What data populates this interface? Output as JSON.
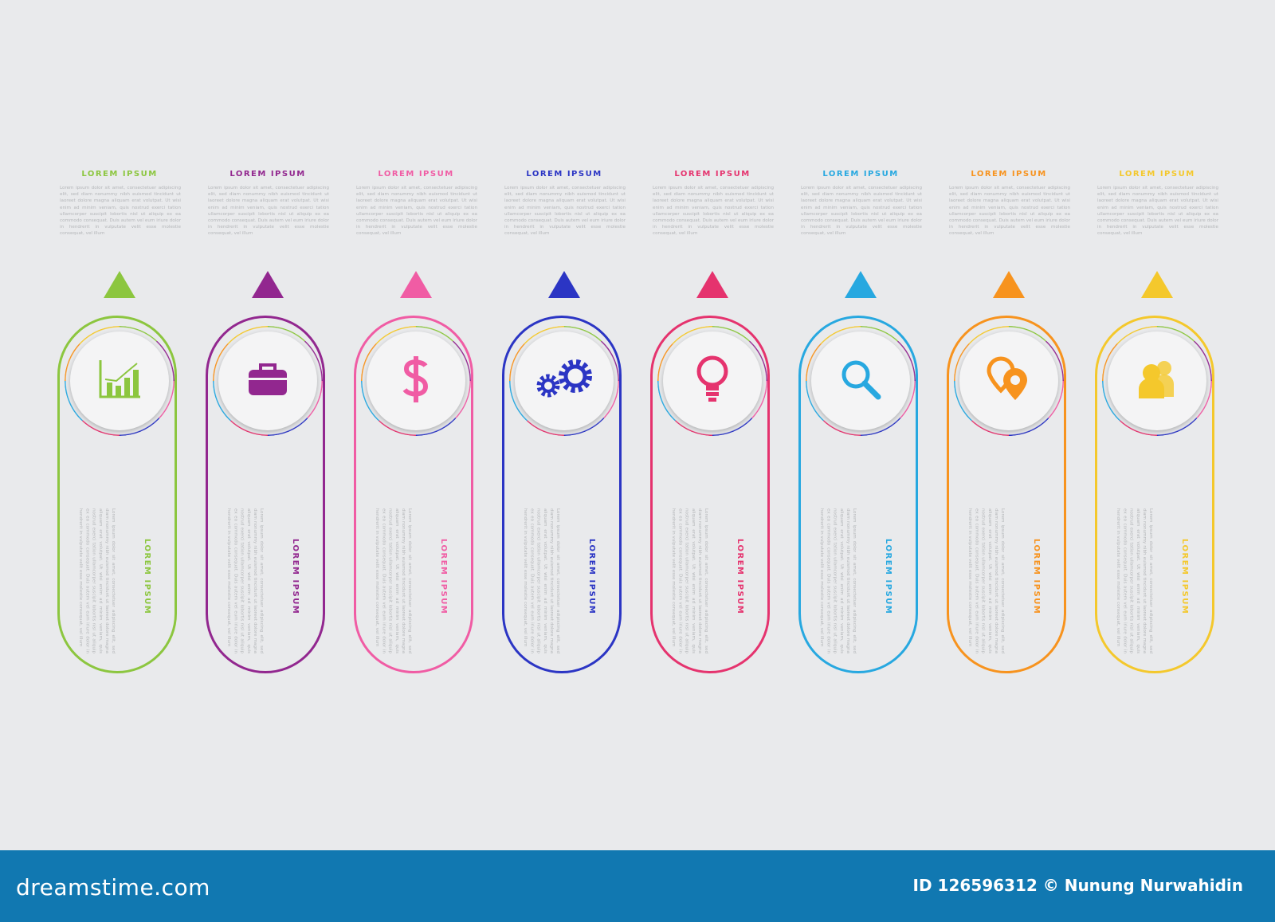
{
  "columns": [
    {
      "heading": "LOREM IPSUM",
      "color": "#8cc63f",
      "icon": "bar-chart-icon"
    },
    {
      "heading": "LOREM IPSUM",
      "color": "#92278f",
      "icon": "briefcase-icon"
    },
    {
      "heading": "LOREM IPSUM",
      "color": "#f05ca4",
      "icon": "dollar-icon"
    },
    {
      "heading": "LOREM IPSUM",
      "color": "#2b35c4",
      "icon": "gears-icon"
    },
    {
      "heading": "LOREM IPSUM",
      "color": "#e5336e",
      "icon": "lightbulb-icon"
    },
    {
      "heading": "LOREM IPSUM",
      "color": "#27a8e0",
      "icon": "search-icon"
    },
    {
      "heading": "LOREM IPSUM",
      "color": "#f7931e",
      "icon": "location-pins-icon"
    },
    {
      "heading": "LOREM IPSUM",
      "color": "#f4c82c",
      "icon": "users-icon"
    }
  ],
  "body_text": "Lorem ipsum dolor sit amet, consectetuer adipiscing elit, sed diam nonummy nibh euismod tincidunt ut laoreet dolore magna aliquam erat volutpat. Ut wisi enim ad minim veniam, quis nostrud exerci tation ullamcorper suscipit lobortis nisl ut aliquip ex ea commodo consequat. Duis autem vel eum iriure dolor in hendrerit in vulputate velit esse molestie consequat, vel illum",
  "footer": {
    "logo": "dreamstime.com",
    "credit": "ID 126596312 © Nunung Nurwahidin",
    "background": "#1178b1"
  }
}
